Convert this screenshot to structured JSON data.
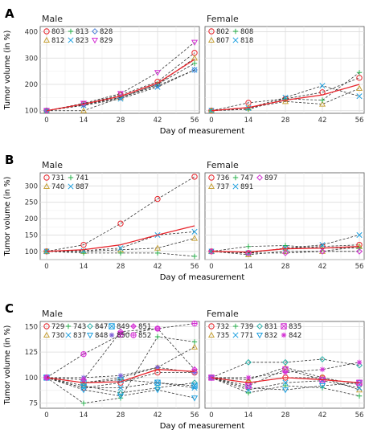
{
  "x_axis_label": "Day of measurement",
  "y_axis_label": "Tumor volume (in %)",
  "chart_data": [
    {
      "type": "line",
      "panel_label": "A",
      "ylim": [
        90,
        420
      ],
      "yticks": [
        100,
        200,
        300,
        400
      ],
      "xticks": [
        0,
        14,
        28,
        42,
        56
      ],
      "x": [
        0,
        14,
        28,
        42,
        56
      ],
      "grid": true,
      "legend_position": "top-left",
      "facets": [
        {
          "label": "Male",
          "mean_values": [
            100,
            125,
            155,
            205,
            295
          ],
          "series": [
            {
              "name": "803",
              "marker": "circle",
              "color": "#e8262d",
              "values": [
                100,
                125,
                160,
                210,
                320
              ]
            },
            {
              "name": "812",
              "marker": "triangle",
              "color": "#c7a23a",
              "values": [
                100,
                100,
                150,
                200,
                300
              ]
            },
            {
              "name": "813",
              "marker": "plus",
              "color": "#27b04b",
              "values": [
                100,
                125,
                150,
                200,
                280
              ]
            },
            {
              "name": "823",
              "marker": "cross",
              "color": "#1ea0e0",
              "values": [
                100,
                120,
                145,
                190,
                255
              ]
            },
            {
              "name": "828",
              "marker": "diamond",
              "color": "#4a7fd6",
              "values": [
                100,
                122,
                150,
                195,
                255
              ]
            },
            {
              "name": "829",
              "marker": "triangle-down",
              "color": "#d42fd4",
              "values": [
                100,
                128,
                165,
                245,
                360
              ]
            }
          ]
        },
        {
          "label": "Female",
          "mean_values": [
            100,
            112,
            140,
            160,
            200
          ],
          "series": [
            {
              "name": "802",
              "marker": "circle",
              "color": "#e8262d",
              "values": [
                100,
                130,
                145,
                170,
                225
              ]
            },
            {
              "name": "807",
              "marker": "triangle",
              "color": "#c7a23a",
              "values": [
                100,
                110,
                135,
                125,
                185
              ]
            },
            {
              "name": "808",
              "marker": "plus",
              "color": "#27b04b",
              "values": [
                100,
                105,
                145,
                140,
                245
              ]
            },
            {
              "name": "818",
              "marker": "cross",
              "color": "#1ea0e0",
              "values": [
                100,
                110,
                150,
                195,
                155
              ]
            }
          ]
        }
      ]
    },
    {
      "type": "line",
      "panel_label": "B",
      "ylim": [
        75,
        340
      ],
      "yticks": [
        100,
        150,
        200,
        250,
        300
      ],
      "xticks": [
        0,
        14,
        28,
        42,
        56
      ],
      "x": [
        0,
        14,
        28,
        42,
        56
      ],
      "grid": true,
      "legend_position": "top-left",
      "facets": [
        {
          "label": "Male",
          "mean_values": [
            100,
            105,
            120,
            150,
            178
          ],
          "series": [
            {
              "name": "731",
              "marker": "circle",
              "color": "#e8262d",
              "values": [
                100,
                120,
                185,
                260,
                328
              ]
            },
            {
              "name": "740",
              "marker": "triangle",
              "color": "#c7a23a",
              "values": [
                100,
                100,
                105,
                110,
                140
              ]
            },
            {
              "name": "741",
              "marker": "plus",
              "color": "#27b04b",
              "values": [
                100,
                95,
                95,
                95,
                85
              ]
            },
            {
              "name": "887",
              "marker": "cross",
              "color": "#1ea0e0",
              "values": [
                100,
                102,
                110,
                150,
                160
              ]
            }
          ]
        },
        {
          "label": "Female",
          "mean_values": [
            100,
            98,
            108,
            110,
            115
          ],
          "series": [
            {
              "name": "736",
              "marker": "circle",
              "color": "#e8262d",
              "values": [
                100,
                95,
                110,
                115,
                120
              ]
            },
            {
              "name": "737",
              "marker": "triangle",
              "color": "#c7a23a",
              "values": [
                100,
                90,
                100,
                100,
                115
              ]
            },
            {
              "name": "747",
              "marker": "plus",
              "color": "#27b04b",
              "values": [
                100,
                115,
                118,
                110,
                110
              ]
            },
            {
              "name": "891",
              "marker": "cross",
              "color": "#1ea0e0",
              "values": [
                100,
                95,
                110,
                120,
                150
              ]
            },
            {
              "name": "897",
              "marker": "diamond",
              "color": "#d42fd4",
              "values": [
                100,
                95,
                95,
                100,
                100
              ]
            }
          ]
        }
      ]
    },
    {
      "type": "line",
      "panel_label": "C",
      "ylim": [
        70,
        155
      ],
      "yticks": [
        75,
        100,
        125,
        150
      ],
      "xticks": [
        0,
        14,
        28,
        42,
        56
      ],
      "x": [
        0,
        14,
        28,
        42,
        56
      ],
      "grid": true,
      "legend_position": "top-left",
      "facets": [
        {
          "label": "Male",
          "mean_values": [
            100,
            95,
            96,
            108,
            106
          ],
          "series": [
            {
              "name": "729",
              "marker": "circle",
              "color": "#e8262d",
              "values": [
                100,
                90,
                95,
                105,
                105
              ]
            },
            {
              "name": "730",
              "marker": "triangle",
              "color": "#c7a23a",
              "values": [
                100,
                95,
                100,
                110,
                130
              ]
            },
            {
              "name": "743",
              "marker": "plus",
              "color": "#27b04b",
              "values": [
                100,
                75,
                80,
                140,
                135
              ]
            },
            {
              "name": "837",
              "marker": "cross",
              "color": "#1ea0e0",
              "values": [
                100,
                90,
                90,
                95,
                90
              ]
            },
            {
              "name": "847",
              "marker": "diamond",
              "color": "#27b0a8",
              "values": [
                100,
                92,
                85,
                90,
                95
              ]
            },
            {
              "name": "848",
              "marker": "triangle-down",
              "color": "#1ea0e0",
              "values": [
                100,
                88,
                82,
                88,
                80
              ]
            },
            {
              "name": "849",
              "marker": "square-x",
              "color": "#1ea0e0",
              "values": [
                100,
                95,
                98,
                95,
                92
              ]
            },
            {
              "name": "850",
              "marker": "star",
              "color": "#7b5fd6",
              "values": [
                100,
                100,
                102,
                110,
                105
              ]
            },
            {
              "name": "851",
              "marker": "diamond-plus",
              "color": "#d42fd4",
              "values": [
                100,
                98,
                145,
                148,
                108
              ]
            },
            {
              "name": "852",
              "marker": "circle-plus",
              "color": "#d42fd4",
              "values": [
                100,
                123,
                142,
                148,
                153
              ]
            }
          ]
        },
        {
          "label": "Female",
          "mean_values": [
            100,
            95,
            100,
            98,
            95
          ],
          "series": [
            {
              "name": "732",
              "marker": "circle",
              "color": "#e8262d",
              "values": [
                100,
                95,
                100,
                100,
                93
              ]
            },
            {
              "name": "735",
              "marker": "triangle",
              "color": "#c7a23a",
              "values": [
                100,
                98,
                110,
                100,
                88
              ]
            },
            {
              "name": "739",
              "marker": "plus",
              "color": "#27b04b",
              "values": [
                100,
                85,
                92,
                90,
                82
              ]
            },
            {
              "name": "771",
              "marker": "cross",
              "color": "#1ea0e0",
              "values": [
                100,
                88,
                95,
                97,
                90
              ]
            },
            {
              "name": "831",
              "marker": "diamond",
              "color": "#27b0a8",
              "values": [
                100,
                115,
                115,
                118,
                112
              ]
            },
            {
              "name": "832",
              "marker": "triangle-down",
              "color": "#1ea0e0",
              "values": [
                100,
                90,
                88,
                92,
                95
              ]
            },
            {
              "name": "835",
              "marker": "square-x",
              "color": "#d42fd4",
              "values": [
                100,
                92,
                108,
                98,
                95
              ]
            },
            {
              "name": "842",
              "marker": "star",
              "color": "#d42fd4",
              "values": [
                100,
                100,
                105,
                108,
                115
              ]
            }
          ]
        }
      ]
    }
  ]
}
